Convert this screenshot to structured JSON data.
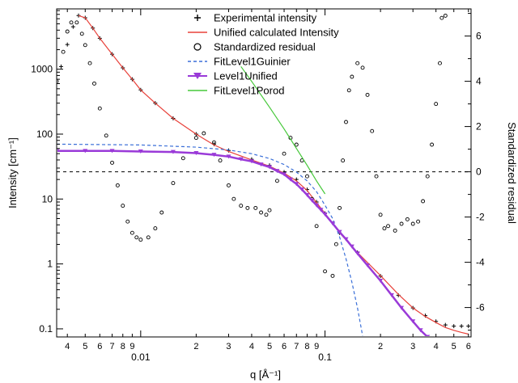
{
  "chart_data": {
    "type": "scatter",
    "xlabel": "q [Å⁻¹]",
    "ylabel": "Intensity [cm⁻¹]",
    "y2label": "Standardized residual",
    "xscale": "log",
    "yscale": "log",
    "xlim": [
      0.0035,
      0.62
    ],
    "ylim": [
      0.075,
      8500
    ],
    "y2lim": [
      -7.3,
      7.2
    ],
    "x_major_ticks": [
      {
        "value": 0.01,
        "label": "0.01"
      },
      {
        "value": 0.1,
        "label": "0.1"
      }
    ],
    "x_minor_ticks": [
      {
        "value": 0.004,
        "label": "4"
      },
      {
        "value": 0.005,
        "label": "5"
      },
      {
        "value": 0.006,
        "label": "6"
      },
      {
        "value": 0.007,
        "label": "7"
      },
      {
        "value": 0.008,
        "label": "8"
      },
      {
        "value": 0.009,
        "label": "9"
      },
      {
        "value": 0.02,
        "label": "2"
      },
      {
        "value": 0.03,
        "label": "3"
      },
      {
        "value": 0.04,
        "label": "4"
      },
      {
        "value": 0.05,
        "label": "5"
      },
      {
        "value": 0.06,
        "label": "6"
      },
      {
        "value": 0.07,
        "label": "7"
      },
      {
        "value": 0.08,
        "label": "8"
      },
      {
        "value": 0.09,
        "label": "9"
      },
      {
        "value": 0.2,
        "label": "2"
      },
      {
        "value": 0.3,
        "label": "3"
      },
      {
        "value": 0.4,
        "label": "4"
      },
      {
        "value": 0.5,
        "label": "5"
      },
      {
        "value": 0.6,
        "label": "6"
      }
    ],
    "y_ticks": [
      {
        "value": 0.1,
        "label": "0.1"
      },
      {
        "value": 1,
        "label": "1"
      },
      {
        "value": 10,
        "label": "10"
      },
      {
        "value": 100,
        "label": "100"
      },
      {
        "value": 1000,
        "label": "1000"
      }
    ],
    "y2_ticks": [
      {
        "value": -6,
        "label": "-6"
      },
      {
        "value": -4,
        "label": "-4"
      },
      {
        "value": -2,
        "label": "-2"
      },
      {
        "value": 0,
        "label": "0"
      },
      {
        "value": 2,
        "label": "2"
      },
      {
        "value": 4,
        "label": "4"
      },
      {
        "value": 6,
        "label": "6"
      }
    ],
    "legend": {
      "placement": "top-center",
      "entries": [
        {
          "key": "experimental",
          "label": "Experimental intensity",
          "symbol": "plus",
          "color": "#000000"
        },
        {
          "key": "unified",
          "label": "Unified calculated Intensity",
          "symbol": "line",
          "color": "#e8413a"
        },
        {
          "key": "residual",
          "label": "Standardized residual",
          "symbol": "circle",
          "color": "#000000"
        },
        {
          "key": "guinier",
          "label": "FitLevel1Guinier",
          "symbol": "dashed-line",
          "color": "#3a6fd8"
        },
        {
          "key": "level1",
          "label": "Level1Unified",
          "symbol": "triangle-line",
          "color": "#9a3ad8"
        },
        {
          "key": "porod",
          "label": "FitLevel1Porod",
          "symbol": "line",
          "color": "#46c83a"
        }
      ]
    },
    "zero_line": {
      "axis": "y2",
      "value": 0,
      "style": "dashed",
      "color": "#000000"
    },
    "series": [
      {
        "name": "Experimental intensity",
        "axis": "y",
        "marker": "plus",
        "color": "#000000",
        "x": [
          0.0035,
          0.0037,
          0.004,
          0.0043,
          0.0046,
          0.005,
          0.0055,
          0.006,
          0.007,
          0.008,
          0.009,
          0.01,
          0.012,
          0.015,
          0.02,
          0.025,
          0.03,
          0.04,
          0.05,
          0.06,
          0.07,
          0.08,
          0.09,
          0.1,
          0.12,
          0.15,
          0.2,
          0.25,
          0.3,
          0.35,
          0.4,
          0.45,
          0.5,
          0.55,
          0.6
        ],
        "y": [
          600,
          1100,
          2400,
          4500,
          6700,
          6200,
          4300,
          3000,
          1700,
          1050,
          700,
          480,
          300,
          175,
          100,
          70,
          56,
          41,
          33,
          26,
          20,
          14,
          9.0,
          6.0,
          3.0,
          1.5,
          0.65,
          0.33,
          0.21,
          0.16,
          0.13,
          0.115,
          0.11,
          0.11,
          0.11
        ]
      },
      {
        "name": "Unified calculated Intensity",
        "axis": "y",
        "line": "solid",
        "color": "#e8413a",
        "x": [
          0.0046,
          0.005,
          0.0055,
          0.006,
          0.007,
          0.008,
          0.009,
          0.01,
          0.012,
          0.015,
          0.02,
          0.025,
          0.03,
          0.04,
          0.05,
          0.06,
          0.07,
          0.08,
          0.09,
          0.1,
          0.12,
          0.15,
          0.2,
          0.25,
          0.3,
          0.35,
          0.4,
          0.45,
          0.5,
          0.55,
          0.6
        ],
        "y": [
          6700,
          6200,
          4300,
          3000,
          1700,
          1050,
          700,
          480,
          300,
          175,
          100,
          68,
          54,
          40,
          32,
          25,
          19,
          13.5,
          8.8,
          6.0,
          3.0,
          1.5,
          0.66,
          0.34,
          0.21,
          0.155,
          0.125,
          0.105,
          0.095,
          0.088,
          0.083
        ]
      },
      {
        "name": "Standardized residual",
        "axis": "y2",
        "marker": "circle",
        "color": "#000000",
        "x": [
          0.0035,
          0.0038,
          0.004,
          0.0042,
          0.0045,
          0.0048,
          0.005,
          0.0053,
          0.0056,
          0.006,
          0.0065,
          0.007,
          0.0075,
          0.008,
          0.0085,
          0.009,
          0.0095,
          0.01,
          0.011,
          0.012,
          0.013,
          0.015,
          0.017,
          0.02,
          0.022,
          0.025,
          0.027,
          0.03,
          0.032,
          0.035,
          0.038,
          0.042,
          0.045,
          0.048,
          0.05,
          0.055,
          0.06,
          0.065,
          0.07,
          0.075,
          0.08,
          0.085,
          0.09,
          0.1,
          0.11,
          0.115,
          0.12,
          0.125,
          0.13,
          0.135,
          0.14,
          0.15,
          0.16,
          0.17,
          0.18,
          0.19,
          0.2,
          0.21,
          0.22,
          0.24,
          0.26,
          0.28,
          0.3,
          0.32,
          0.34,
          0.36,
          0.38,
          0.4,
          0.42,
          0.43,
          0.45
        ],
        "y": [
          4.0,
          5.3,
          6.2,
          6.6,
          6.6,
          6.1,
          5.6,
          4.8,
          3.9,
          2.8,
          1.6,
          0.4,
          -0.6,
          -1.5,
          -2.2,
          -2.7,
          -2.9,
          -3.0,
          -2.9,
          -2.5,
          -1.8,
          -0.5,
          0.6,
          1.5,
          1.7,
          1.3,
          0.5,
          -0.6,
          -1.2,
          -1.5,
          -1.6,
          -1.6,
          -1.8,
          -1.9,
          -1.7,
          -0.4,
          0.8,
          1.5,
          1.2,
          0.5,
          -0.2,
          -1.2,
          -2.4,
          -4.4,
          -4.6,
          -3.2,
          -1.6,
          0.5,
          2.2,
          3.6,
          4.2,
          4.8,
          4.6,
          3.4,
          1.8,
          -0.2,
          -1.9,
          -2.5,
          -2.4,
          -2.6,
          -2.3,
          -2.1,
          -2.3,
          -2.2,
          -1.3,
          -0.2,
          1.2,
          3.0,
          4.8,
          6.8,
          6.9
        ]
      },
      {
        "name": "FitLevel1Guinier",
        "axis": "y",
        "line": "dashed",
        "color": "#3a6fd8",
        "x": [
          0.0035,
          0.01,
          0.02,
          0.03,
          0.04,
          0.05,
          0.06,
          0.07,
          0.08,
          0.09,
          0.1,
          0.11,
          0.12,
          0.13,
          0.14,
          0.15,
          0.16
        ],
        "y": [
          70,
          68,
          63,
          57,
          50,
          42,
          34,
          26,
          19,
          13,
          8.0,
          5.0,
          2.6,
          1.2,
          0.52,
          0.21,
          0.078
        ]
      },
      {
        "name": "Level1Unified",
        "axis": "y",
        "line": "solid",
        "marker": "triangle-down",
        "color": "#9a3ad8",
        "x": [
          0.0035,
          0.005,
          0.007,
          0.01,
          0.015,
          0.02,
          0.025,
          0.03,
          0.035,
          0.04,
          0.045,
          0.05,
          0.055,
          0.06,
          0.065,
          0.07,
          0.075,
          0.08,
          0.085,
          0.09,
          0.095,
          0.1,
          0.11,
          0.12,
          0.13,
          0.14,
          0.15,
          0.17,
          0.2,
          0.23,
          0.26,
          0.3,
          0.33,
          0.36
        ],
        "y": [
          55,
          55,
          55,
          54,
          53,
          51,
          48,
          45,
          41,
          38,
          34,
          31,
          27,
          24,
          20,
          17,
          14,
          11.5,
          9.5,
          8.0,
          6.8,
          5.8,
          4.2,
          3.1,
          2.4,
          1.85,
          1.45,
          0.95,
          0.55,
          0.33,
          0.21,
          0.13,
          0.095,
          0.075
        ]
      },
      {
        "name": "FitLevel1Porod",
        "axis": "y",
        "line": "solid",
        "color": "#46c83a",
        "x": [
          0.035,
          0.04,
          0.05,
          0.06,
          0.07,
          0.08,
          0.09,
          0.1
        ],
        "y": [
          1100,
          650,
          260,
          120,
          60,
          33,
          19,
          12
        ]
      }
    ]
  }
}
